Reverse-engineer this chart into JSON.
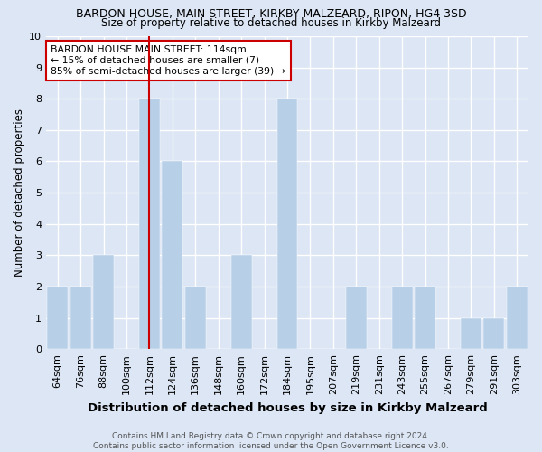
{
  "title": "BARDON HOUSE, MAIN STREET, KIRKBY MALZEARD, RIPON, HG4 3SD",
  "subtitle": "Size of property relative to detached houses in Kirkby Malzeard",
  "xlabel": "Distribution of detached houses by size in Kirkby Malzeard",
  "ylabel": "Number of detached properties",
  "categories": [
    "64sqm",
    "76sqm",
    "88sqm",
    "100sqm",
    "112sqm",
    "124sqm",
    "136sqm",
    "148sqm",
    "160sqm",
    "172sqm",
    "184sqm",
    "195sqm",
    "207sqm",
    "219sqm",
    "231sqm",
    "243sqm",
    "255sqm",
    "267sqm",
    "279sqm",
    "291sqm",
    "303sqm"
  ],
  "values": [
    2,
    2,
    3,
    0,
    8,
    6,
    2,
    0,
    3,
    0,
    8,
    0,
    0,
    2,
    0,
    2,
    2,
    0,
    1,
    1,
    2
  ],
  "bar_color": "#b8cfe8",
  "bar_edge_color": "#b8cfe8",
  "highlight_index": 4,
  "highlight_line_color": "#cc0000",
  "annotation_line1": "BARDON HOUSE MAIN STREET: 114sqm",
  "annotation_line2": "← 15% of detached houses are smaller (7)",
  "annotation_line3": "85% of semi-detached houses are larger (39) →",
  "annotation_box_color": "#cc0000",
  "ylim": [
    0,
    10
  ],
  "yticks": [
    0,
    1,
    2,
    3,
    4,
    5,
    6,
    7,
    8,
    9,
    10
  ],
  "background_color": "#dce6f5",
  "plot_bg_color": "#dce6f5",
  "grid_color": "#ffffff",
  "footer_line1": "Contains HM Land Registry data © Crown copyright and database right 2024.",
  "footer_line2": "Contains public sector information licensed under the Open Government Licence v3.0.",
  "title_fontsize": 9.0,
  "subtitle_fontsize": 8.5,
  "ylabel_fontsize": 8.5,
  "xlabel_fontsize": 9.5,
  "tick_fontsize": 8.0,
  "annotation_fontsize": 7.8,
  "footer_fontsize": 6.5
}
